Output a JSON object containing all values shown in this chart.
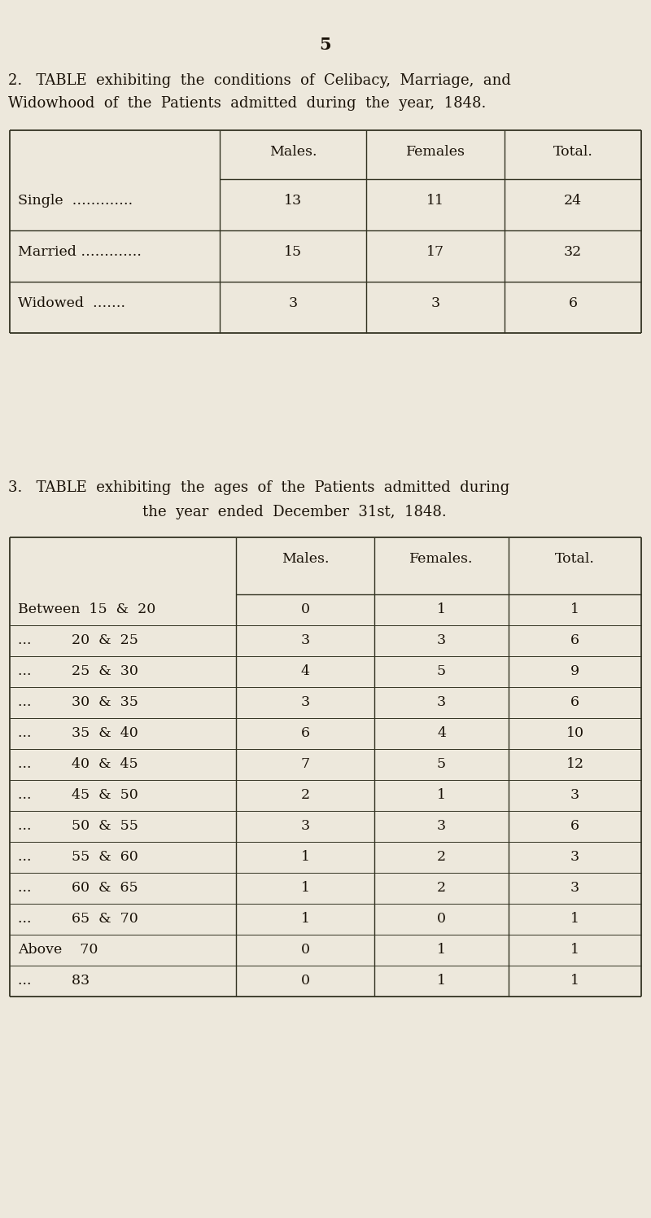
{
  "bg_color": "#ede8dc",
  "page_number": "5",
  "table1_title_line1": "2.   TABLE  exhibiting  the  conditions  of  Celibacy,  Marriage,  and",
  "table1_title_line2": "Widowhood  of  the  Patients  admitted  during  the  year,  1848.",
  "table1_col_headers": [
    "Males.",
    "Females",
    "Total."
  ],
  "table1_rows": [
    [
      "Single  ………….",
      "13",
      "11",
      "24"
    ],
    [
      "Married ………….",
      "15",
      "17",
      "32"
    ],
    [
      "Widowed  …….",
      "3",
      "3",
      "6"
    ]
  ],
  "table2_title_line1": "3.   TABLE  exhibiting  the  ages  of  the  Patients  admitted  during",
  "table2_title_line2": "the  year  ended  December  31st,  1848.",
  "table2_col_headers": [
    "Males.",
    "Females.",
    "Total."
  ],
  "table2_rows": [
    [
      "Between  15  &  20",
      "0",
      "1",
      "1"
    ],
    [
      "...         20  &  25",
      "3",
      "3",
      "6"
    ],
    [
      "...         25  &  30",
      "4",
      "5",
      "9"
    ],
    [
      "...         30  &  35",
      "3",
      "3",
      "6"
    ],
    [
      "...         35  &  40",
      "6",
      "4",
      "10"
    ],
    [
      "...         40  &  45",
      "7",
      "5",
      "12"
    ],
    [
      "...         45  &  50",
      "2",
      "1",
      "3"
    ],
    [
      "...         50  &  55",
      "3",
      "3",
      "6"
    ],
    [
      "...         55  &  60",
      "1",
      "2",
      "3"
    ],
    [
      "...         60  &  65",
      "1",
      "2",
      "3"
    ],
    [
      "...         65  &  70",
      "1",
      "0",
      "1"
    ],
    [
      "Above    70",
      "0",
      "1",
      "1"
    ],
    [
      "...         83",
      "0",
      "1",
      "1"
    ]
  ],
  "font_size_title": 13,
  "font_size_header": 12.5,
  "font_size_data": 12.5,
  "font_size_page": 15,
  "text_color": "#1a1208"
}
